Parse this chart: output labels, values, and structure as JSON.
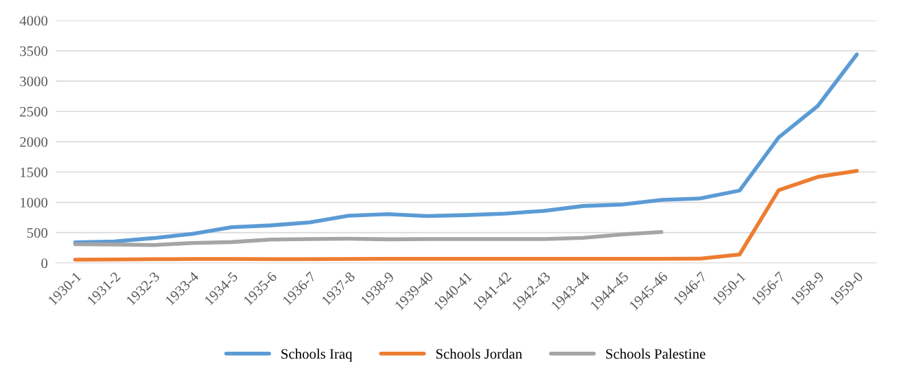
{
  "chart_data": {
    "type": "line",
    "categories": [
      "1930-1",
      "1931-2",
      "1932-3",
      "1933-4",
      "1934-5",
      "1935-6",
      "1936-7",
      "1937-8",
      "1938-9",
      "1939-40",
      "1940-41",
      "1941-42",
      "1942-43",
      "1943-44",
      "1944-45",
      "1945-46",
      "1946-7",
      "1950-1",
      "1956-7",
      "1958-9",
      "1959-0"
    ],
    "series": [
      {
        "name": "Schools Iraq",
        "color": "#5b9bd5",
        "values": [
          340,
          355,
          410,
          480,
          590,
          620,
          670,
          780,
          805,
          775,
          790,
          815,
          860,
          940,
          965,
          1040,
          1065,
          1195,
          2070,
          2590,
          3440
        ]
      },
      {
        "name": "Schools Jordan",
        "color": "#ed7d31",
        "values": [
          55,
          58,
          62,
          65,
          65,
          62,
          62,
          65,
          68,
          68,
          68,
          68,
          68,
          68,
          68,
          68,
          72,
          140,
          1200,
          1420,
          1520
        ]
      },
      {
        "name": "Schools Palestine",
        "color": "#a5a5a5",
        "values": [
          310,
          305,
          295,
          330,
          345,
          385,
          395,
          400,
          390,
          395,
          395,
          395,
          395,
          415,
          470,
          510,
          null,
          null,
          null,
          null,
          null
        ]
      }
    ],
    "ylim": [
      0,
      4000
    ],
    "yticks": [
      0,
      500,
      1000,
      1500,
      2000,
      2500,
      3000,
      3500,
      4000
    ],
    "grid": "y",
    "legend": "bottom",
    "marker": "none",
    "line_style": "solid"
  }
}
